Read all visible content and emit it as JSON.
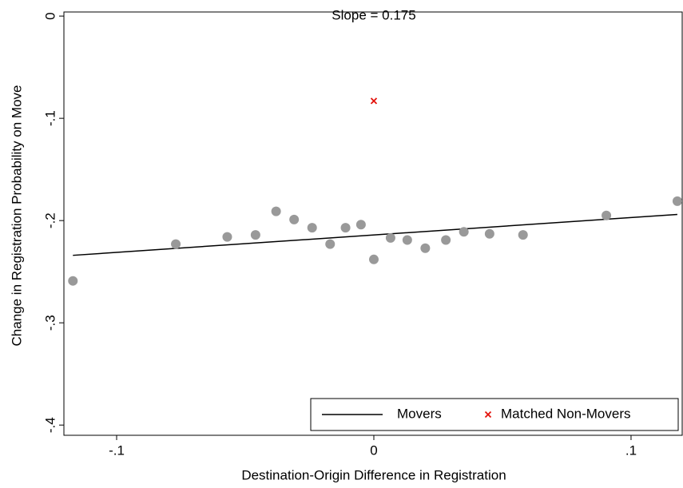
{
  "chart_data": {
    "type": "scatter",
    "annotation": "Slope = 0.175",
    "x_label": "Destination-Origin Difference in Registration",
    "y_label": "Change in Registration Probability on Move",
    "xlim": [
      -0.1205,
      0.1202
    ],
    "ylim": [
      -0.41,
      0.004
    ],
    "xticks": [
      {
        "value": -0.1,
        "label": "-.1"
      },
      0,
      {
        "value": 0.1,
        "label": ".1"
      }
    ],
    "yticks": [
      0,
      {
        "value": -0.1,
        "label": "-.1"
      },
      {
        "value": -0.2,
        "label": "-.2"
      },
      {
        "value": -0.3,
        "label": "-.3"
      },
      {
        "value": -0.4,
        "label": "-.4"
      }
    ],
    "legend": "lower right",
    "series": [
      {
        "name": "Movers",
        "color": "#999999",
        "line_color": "#000000",
        "x": [
          -0.117,
          -0.077,
          -0.057,
          -0.046,
          -0.038,
          -0.031,
          -0.024,
          -0.017,
          -0.011,
          -0.005,
          0,
          0.0065,
          0.013,
          0.02,
          0.028,
          0.035,
          0.045,
          0.058,
          0.0904,
          0.118
        ],
        "values": [
          -0.259,
          -0.223,
          -0.216,
          -0.214,
          -0.191,
          -0.199,
          -0.207,
          -0.223,
          -0.207,
          -0.204,
          -0.238,
          -0.217,
          -0.219,
          -0.227,
          -0.219,
          -0.211,
          -0.213,
          -0.214,
          -0.195,
          -0.181
        ],
        "fit_x": [
          -0.117,
          0.118
        ],
        "fit_values": [
          -0.234,
          -0.194
        ]
      },
      {
        "name": "Matched Non-Movers",
        "color": "#e3120b",
        "x": [
          0
        ],
        "values": [
          -0.083
        ]
      }
    ]
  }
}
